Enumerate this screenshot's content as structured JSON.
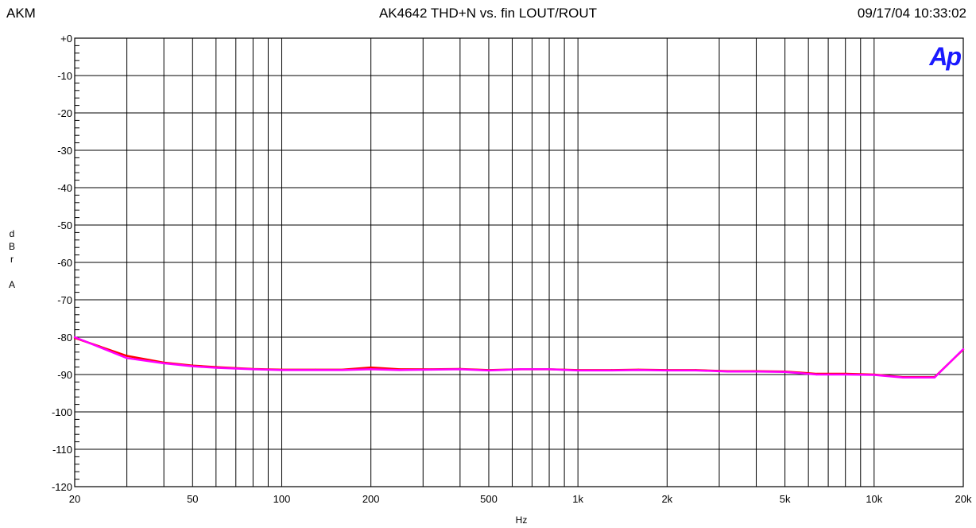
{
  "header": {
    "left": "AKM",
    "title": "AK4642 THD+N vs. fin  LOUT/ROUT",
    "timestamp": "09/17/04 10:33:02"
  },
  "logo": {
    "text": "Ap",
    "color": "#1a1aff"
  },
  "chart_data": {
    "type": "line",
    "title": "AK4642 THD+N vs. fin  LOUT/ROUT",
    "xlabel": "Hz",
    "ylabel": "d B r  A",
    "xscale": "log",
    "xlim": [
      20,
      20000
    ],
    "ylim": [
      -120,
      0
    ],
    "grid": true,
    "x_ticks": [
      {
        "value": 20,
        "label": "20"
      },
      {
        "value": 50,
        "label": "50"
      },
      {
        "value": 100,
        "label": "100"
      },
      {
        "value": 200,
        "label": "200"
      },
      {
        "value": 500,
        "label": "500"
      },
      {
        "value": 1000,
        "label": "1k"
      },
      {
        "value": 2000,
        "label": "2k"
      },
      {
        "value": 5000,
        "label": "5k"
      },
      {
        "value": 10000,
        "label": "10k"
      },
      {
        "value": 20000,
        "label": "20k"
      }
    ],
    "y_ticks": [
      {
        "value": 0,
        "label": "+0"
      },
      {
        "value": -10,
        "label": "-10"
      },
      {
        "value": -20,
        "label": "-20"
      },
      {
        "value": -30,
        "label": "-30"
      },
      {
        "value": -40,
        "label": "-40"
      },
      {
        "value": -50,
        "label": "-50"
      },
      {
        "value": -60,
        "label": "-60"
      },
      {
        "value": -70,
        "label": "-70"
      },
      {
        "value": -80,
        "label": "-80"
      },
      {
        "value": -90,
        "label": "-90"
      },
      {
        "value": -100,
        "label": "-100"
      },
      {
        "value": -110,
        "label": "-110"
      },
      {
        "value": -120,
        "label": "-120"
      }
    ],
    "series": [
      {
        "color": "#ff0000",
        "x": [
          20,
          30,
          40,
          50,
          60,
          80,
          100,
          130,
          160,
          200,
          250,
          320,
          400,
          500,
          640,
          800,
          1000,
          1300,
          1600,
          2000,
          2500,
          3200,
          4000,
          5000,
          6400,
          8000,
          10000,
          12500,
          16000,
          20000
        ],
        "y": [
          -80.2,
          -85.0,
          -86.8,
          -87.6,
          -88.0,
          -88.5,
          -88.7,
          -88.7,
          -88.7,
          -88.1,
          -88.6,
          -88.6,
          -88.5,
          -88.8,
          -88.6,
          -88.6,
          -88.8,
          -88.8,
          -88.7,
          -88.8,
          -88.8,
          -89.1,
          -89.1,
          -89.2,
          -89.8,
          -89.8,
          -90.0,
          -90.7,
          -90.7,
          -83.3
        ]
      },
      {
        "color": "#ff00ff",
        "x": [
          20,
          30,
          40,
          50,
          60,
          80,
          100,
          130,
          160,
          200,
          250,
          320,
          400,
          500,
          640,
          800,
          1000,
          1300,
          1600,
          2000,
          2500,
          3200,
          4000,
          5000,
          6400,
          8000,
          10000,
          12500,
          16000,
          20000
        ],
        "y": [
          -80.0,
          -85.6,
          -87.0,
          -87.8,
          -88.2,
          -88.6,
          -88.8,
          -88.8,
          -88.8,
          -88.6,
          -88.8,
          -88.7,
          -88.6,
          -88.9,
          -88.6,
          -88.6,
          -88.9,
          -88.9,
          -88.8,
          -88.9,
          -88.9,
          -89.2,
          -89.2,
          -89.3,
          -90.0,
          -90.0,
          -90.1,
          -90.8,
          -90.8,
          -83.2
        ]
      }
    ]
  }
}
